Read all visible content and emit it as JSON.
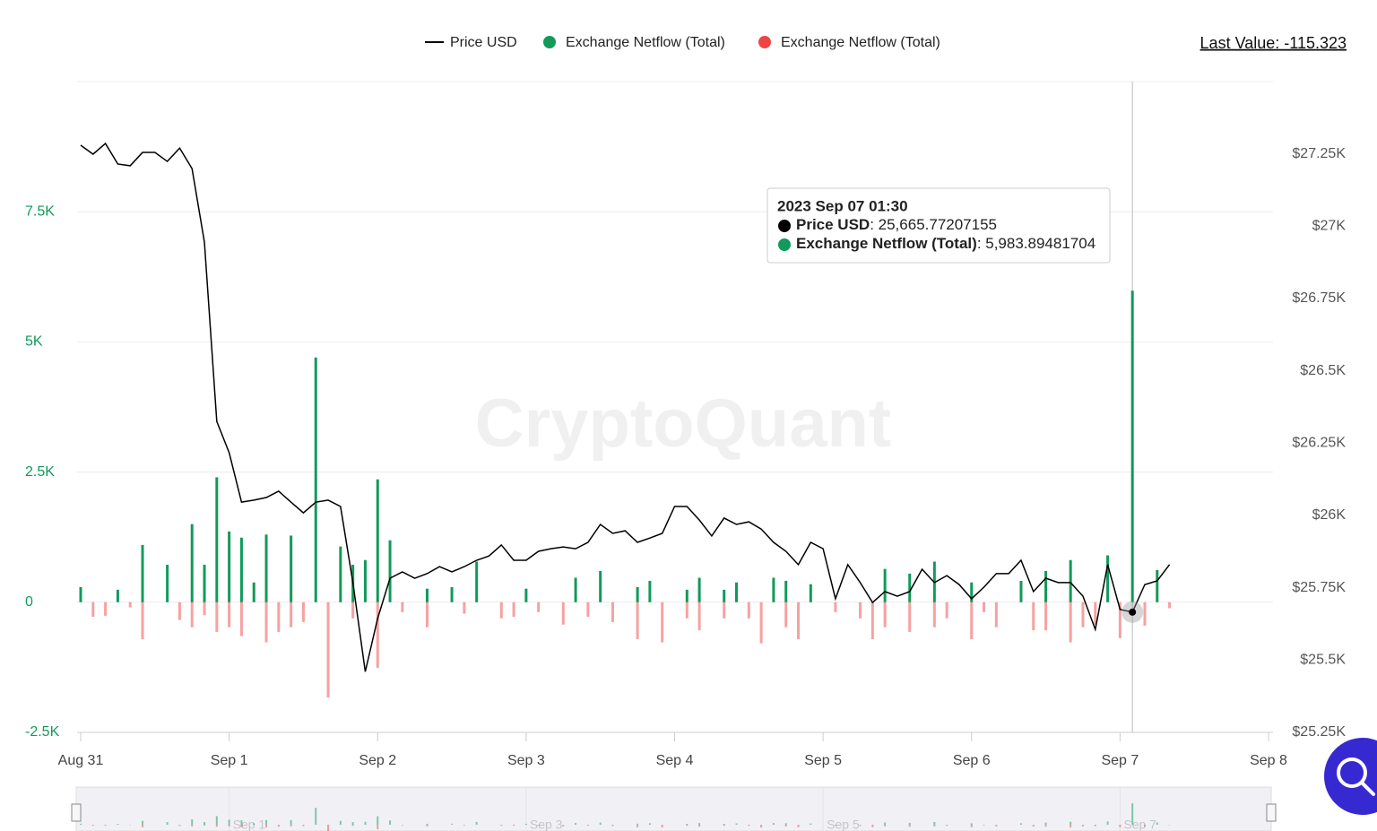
{
  "chart_data": {
    "type": "bar",
    "legend": "top",
    "grid": true,
    "last_value": "Last Value: -115.323",
    "watermark": "CryptoQuant",
    "xlim": [
      0,
      192
    ],
    "xticks": [
      {
        "value": 0,
        "label": "Aug 31"
      },
      {
        "value": 24,
        "label": "Sep 1"
      },
      {
        "value": 48,
        "label": "Sep 2"
      },
      {
        "value": 72,
        "label": "Sep 3"
      },
      {
        "value": 96,
        "label": "Sep 4"
      },
      {
        "value": 120,
        "label": "Sep 5"
      },
      {
        "value": 144,
        "label": "Sep 6"
      },
      {
        "value": 168,
        "label": "Sep 7"
      },
      {
        "value": 192,
        "label": "Sep 8"
      }
    ],
    "ylim": [
      -2500,
      10000
    ],
    "yticks": [
      {
        "value": -2500,
        "label": "-2.5K"
      },
      0,
      {
        "value": 2500,
        "label": "2.5K"
      },
      {
        "value": 5000,
        "label": "5K"
      },
      {
        "value": 7500,
        "label": "7.5K"
      }
    ],
    "y2lim": [
      25250,
      27500
    ],
    "y2ticks": [
      {
        "value": 25250,
        "label": "$25.25K"
      },
      {
        "value": 25500,
        "label": "$25.5K"
      },
      {
        "value": 25750,
        "label": "$25.75K"
      },
      {
        "value": 26000,
        "label": "$26K"
      },
      {
        "value": 26250,
        "label": "$26.25K"
      },
      {
        "value": 26500,
        "label": "$26.5K"
      },
      {
        "value": 26750,
        "label": "$26.75K"
      },
      {
        "value": 27000,
        "label": "$27K"
      },
      {
        "value": 27250,
        "label": "$27.25K"
      }
    ],
    "x": [
      0,
      2,
      4,
      6,
      8,
      10,
      12,
      14,
      16,
      18,
      20,
      22,
      24,
      26,
      28,
      30,
      32,
      34,
      36,
      38,
      40,
      42,
      44,
      46,
      48,
      50,
      52,
      54,
      56,
      58,
      60,
      62,
      64,
      66,
      68,
      70,
      72,
      74,
      76,
      78,
      80,
      82,
      84,
      86,
      88,
      90,
      92,
      94,
      96,
      98,
      100,
      102,
      104,
      106,
      108,
      110,
      112,
      114,
      116,
      118,
      120,
      122,
      124,
      126,
      128,
      130,
      132,
      134,
      136,
      138,
      140,
      142,
      144,
      146,
      148,
      150,
      152,
      154,
      156,
      158,
      160,
      162,
      164,
      166,
      168,
      170,
      172,
      174,
      176
    ],
    "series": [
      {
        "name": "Price USD",
        "type": "line",
        "axis": "y2",
        "color": "#000000",
        "values": [
          27280,
          27249,
          27286,
          27215,
          27209,
          27255,
          27255,
          27224,
          27270,
          27199,
          26945,
          26325,
          26217,
          26046,
          26053,
          26062,
          26084,
          26046,
          26009,
          26046,
          26053,
          26031,
          25768,
          25460,
          25644,
          25783,
          25805,
          25783,
          25799,
          25823,
          25805,
          25823,
          25845,
          25860,
          25898,
          25845,
          25845,
          25876,
          25885,
          25891,
          25885,
          25907,
          25969,
          25938,
          25947,
          25907,
          25922,
          25938,
          26031,
          26031,
          25984,
          25929,
          25991,
          25969,
          25978,
          25953,
          25907,
          25876,
          25830,
          25907,
          25885,
          25712,
          25830,
          25768,
          25699,
          25737,
          25721,
          25737,
          25814,
          25768,
          25792,
          25761,
          25712,
          25752,
          25799,
          25799,
          25845,
          25737,
          25783,
          25768,
          25768,
          25721,
          25606,
          25830,
          25675,
          25665.77207155,
          25761,
          25774,
          25830
        ]
      },
      {
        "name": "Exchange Netflow (Total)",
        "type": "bar",
        "color": "#119a5b",
        "values": [
          290,
          null,
          null,
          240,
          null,
          1100,
          null,
          720,
          null,
          1500,
          720,
          2400,
          1360,
          1240,
          380,
          1300,
          null,
          1280,
          null,
          4700,
          null,
          1070,
          720,
          810,
          2360,
          1190,
          null,
          null,
          260,
          null,
          290,
          null,
          780,
          null,
          null,
          null,
          260,
          null,
          null,
          null,
          470,
          null,
          600,
          null,
          null,
          290,
          410,
          null,
          null,
          240,
          470,
          null,
          240,
          380,
          null,
          null,
          470,
          410,
          null,
          345,
          null,
          null,
          null,
          null,
          null,
          640,
          null,
          550,
          null,
          780,
          null,
          null,
          380,
          null,
          null,
          null,
          410,
          null,
          600,
          null,
          810,
          null,
          null,
          900,
          null,
          5983.89481704,
          null,
          620,
          null
        ]
      },
      {
        "name": "Exchange Netflow (Total)",
        "type": "bar",
        "color": "#ef4444",
        "values": [
          null,
          -280,
          -260,
          null,
          -100,
          -710,
          null,
          null,
          -340,
          -480,
          -250,
          -570,
          -480,
          -650,
          null,
          -770,
          -570,
          -480,
          -380,
          null,
          -1830,
          null,
          -310,
          null,
          -1260,
          null,
          -190,
          null,
          -480,
          null,
          null,
          -220,
          null,
          null,
          -310,
          -280,
          null,
          -190,
          null,
          -430,
          null,
          -280,
          null,
          -380,
          null,
          -710,
          null,
          -770,
          null,
          -310,
          -540,
          null,
          -310,
          null,
          -310,
          -790,
          null,
          -480,
          -710,
          null,
          null,
          -190,
          null,
          -310,
          -710,
          -480,
          null,
          -570,
          null,
          -480,
          -310,
          null,
          -710,
          -190,
          -480,
          null,
          null,
          -540,
          -540,
          null,
          -770,
          -480,
          -430,
          null,
          -690,
          null,
          -450,
          null,
          -115.323
        ]
      }
    ],
    "tooltip": {
      "title": "2023 Sep 07 01:30",
      "items": [
        {
          "name": "Price USD",
          "text": ": 25,665.77207155"
        },
        {
          "name": "Exchange Netflow (Total)",
          "text": ": 5,983.89481704"
        }
      ]
    }
  }
}
